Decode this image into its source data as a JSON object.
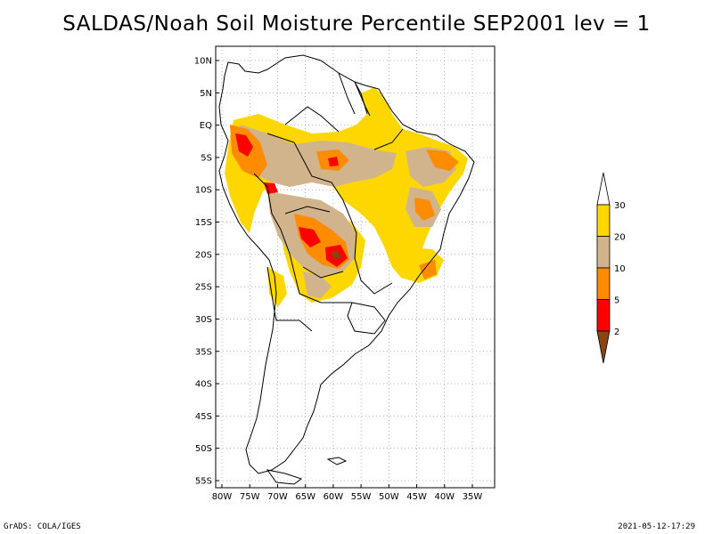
{
  "title": "SALDAS/Noah Soil Moisture Percentile SEP2001 lev = 1",
  "footer": {
    "left": "GrADS: COLA/IGES",
    "right": "2021-05-12-17:29"
  },
  "map": {
    "region": "South America",
    "lat_ticks": [
      "10N",
      "5N",
      "EQ",
      "5S",
      "10S",
      "15S",
      "20S",
      "25S",
      "30S",
      "35S",
      "40S",
      "45S",
      "50S",
      "55S"
    ],
    "lat_values": [
      10,
      5,
      0,
      -5,
      -10,
      -15,
      -20,
      -25,
      -30,
      -35,
      -40,
      -45,
      -50,
      -55
    ],
    "lon_ticks": [
      "80W",
      "75W",
      "70W",
      "65W",
      "60W",
      "55W",
      "50W",
      "45W",
      "40W",
      "35W"
    ],
    "lon_values": [
      -80,
      -75,
      -70,
      -65,
      -60,
      -55,
      -50,
      -45,
      -40,
      -35
    ],
    "grid": true
  },
  "legend": {
    "labels": [
      "2",
      "5",
      "10",
      "20",
      "30"
    ],
    "colors": [
      "#8b4513",
      "#ff0000",
      "#ff8c00",
      "#d2b48c",
      "#ffd700",
      "#ffffff"
    ]
  }
}
